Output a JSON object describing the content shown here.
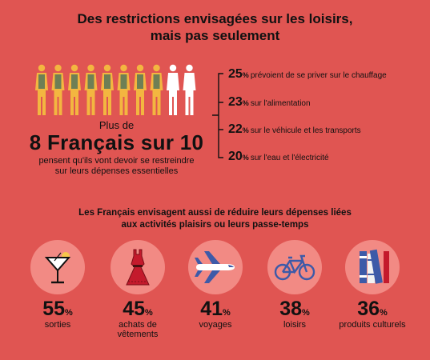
{
  "header": {
    "title_line1": "Des restrictions envisagées sur les loisirs,",
    "title_line2": "mais pas seulement"
  },
  "summary": {
    "people_total": 10,
    "people_highlighted": 8,
    "lead": "Plus de",
    "headline": "8 Français sur 10",
    "sub_line1": "pensent qu'ils vont devoir se restreindre",
    "sub_line2": "sur leurs dépenses essentielles"
  },
  "restrictions": [
    {
      "value": "25",
      "unit": "%",
      "label": "prévoient de se priver sur le chauffage"
    },
    {
      "value": "23",
      "unit": "%",
      "label": "sur l'alimentation"
    },
    {
      "value": "22",
      "unit": "%",
      "label": "sur le véhicule et les transports"
    },
    {
      "value": "20",
      "unit": "%",
      "label": "sur l'eau et l'électricité"
    }
  ],
  "intro": {
    "line1": "Les Français envisagent aussi de réduire leurs dépenses liées",
    "line2": "aux activités plaisirs ou leurs passe-temps"
  },
  "categories": [
    {
      "icon": "cocktail-icon",
      "value": "55",
      "unit": "%",
      "label": "sorties"
    },
    {
      "icon": "dress-icon",
      "value": "45",
      "unit": "%",
      "label": "achats de vêtements"
    },
    {
      "icon": "airplane-icon",
      "value": "41",
      "unit": "%",
      "label": "voyages"
    },
    {
      "icon": "bicycle-icon",
      "value": "38",
      "unit": "%",
      "label": "loisirs"
    },
    {
      "icon": "books-icon",
      "value": "36",
      "unit": "%",
      "label": "produits culturels"
    }
  ],
  "colors": {
    "background": "#e05552",
    "icon_circle": "#f28a84",
    "person_highlight": "#f3b640",
    "person_highlight_alt": "#6e7f55",
    "person_plain": "#ffffff",
    "accent_blue": "#3d5aa8"
  }
}
